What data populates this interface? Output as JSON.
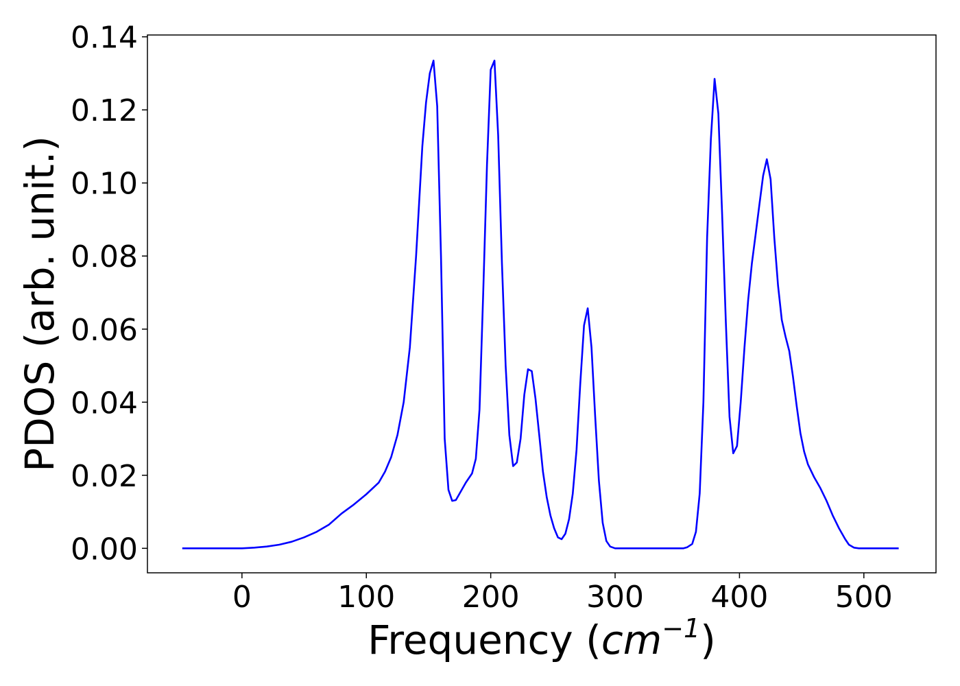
{
  "chart_data": {
    "type": "line",
    "title": "",
    "xlabel": "Frequency (",
    "xlabel_italic": "cm",
    "xlabel_sup": "−1",
    "xlabel_close": ")",
    "ylabel": "PDOS (arb. unit.)",
    "xlim": [
      -76,
      558
    ],
    "ylim": [
      -0.0067,
      0.1405
    ],
    "xticks": [
      0,
      100,
      200,
      300,
      400,
      500
    ],
    "xtick_labels": [
      "0",
      "100",
      "200",
      "300",
      "400",
      "500"
    ],
    "yticks": [
      0.0,
      0.02,
      0.04,
      0.06,
      0.08,
      0.1,
      0.12,
      0.14
    ],
    "ytick_labels": [
      "0.00",
      "0.02",
      "0.04",
      "0.06",
      "0.08",
      "0.10",
      "0.12",
      "0.14"
    ],
    "grid": false,
    "series": [
      {
        "color": "#0000ff",
        "points": [
          [
            -48,
            0.0
          ],
          [
            0,
            0.0
          ],
          [
            10,
            0.0002
          ],
          [
            20,
            0.0005
          ],
          [
            30,
            0.001
          ],
          [
            40,
            0.0018
          ],
          [
            50,
            0.003
          ],
          [
            60,
            0.0045
          ],
          [
            70,
            0.0065
          ],
          [
            80,
            0.0095
          ],
          [
            90,
            0.012
          ],
          [
            100,
            0.0148
          ],
          [
            110,
            0.018
          ],
          [
            115,
            0.021
          ],
          [
            120,
            0.025
          ],
          [
            125,
            0.031
          ],
          [
            130,
            0.04
          ],
          [
            135,
            0.055
          ],
          [
            140,
            0.08
          ],
          [
            145,
            0.11
          ],
          [
            148,
            0.122
          ],
          [
            151,
            0.13
          ],
          [
            154,
            0.1335
          ],
          [
            157,
            0.121
          ],
          [
            160,
            0.08
          ],
          [
            163,
            0.03
          ],
          [
            166,
            0.016
          ],
          [
            169,
            0.013
          ],
          [
            172,
            0.0132
          ],
          [
            175,
            0.015
          ],
          [
            180,
            0.018
          ],
          [
            185,
            0.0205
          ],
          [
            188,
            0.0245
          ],
          [
            191,
            0.038
          ],
          [
            194,
            0.07
          ],
          [
            197,
            0.105
          ],
          [
            200,
            0.131
          ],
          [
            203,
            0.1335
          ],
          [
            206,
            0.113
          ],
          [
            209,
            0.078
          ],
          [
            212,
            0.05
          ],
          [
            215,
            0.031
          ],
          [
            218,
            0.0225
          ],
          [
            221,
            0.0235
          ],
          [
            224,
            0.03
          ],
          [
            227,
            0.042
          ],
          [
            230,
            0.049
          ],
          [
            233,
            0.0485
          ],
          [
            236,
            0.041
          ],
          [
            239,
            0.031
          ],
          [
            242,
            0.021
          ],
          [
            245,
            0.014
          ],
          [
            248,
            0.009
          ],
          [
            251,
            0.0055
          ],
          [
            254,
            0.003
          ],
          [
            257,
            0.0025
          ],
          [
            260,
            0.004
          ],
          [
            263,
            0.008
          ],
          [
            266,
            0.015
          ],
          [
            269,
            0.027
          ],
          [
            272,
            0.045
          ],
          [
            275,
            0.061
          ],
          [
            278,
            0.0657
          ],
          [
            281,
            0.055
          ],
          [
            284,
            0.036
          ],
          [
            287,
            0.0185
          ],
          [
            290,
            0.007
          ],
          [
            293,
            0.002
          ],
          [
            296,
            0.0005
          ],
          [
            300,
            0.0
          ],
          [
            355,
            0.0
          ],
          [
            358,
            0.0003
          ],
          [
            362,
            0.0012
          ],
          [
            365,
            0.0045
          ],
          [
            368,
            0.015
          ],
          [
            371,
            0.04
          ],
          [
            374,
            0.085
          ],
          [
            377,
            0.112
          ],
          [
            380,
            0.1285
          ],
          [
            383,
            0.119
          ],
          [
            386,
            0.092
          ],
          [
            389,
            0.062
          ],
          [
            392,
            0.036
          ],
          [
            395,
            0.026
          ],
          [
            398,
            0.028
          ],
          [
            401,
            0.04
          ],
          [
            404,
            0.055
          ],
          [
            407,
            0.068
          ],
          [
            410,
            0.078
          ],
          [
            413,
            0.086
          ],
          [
            416,
            0.094
          ],
          [
            419,
            0.102
          ],
          [
            422,
            0.1065
          ],
          [
            425,
            0.101
          ],
          [
            428,
            0.085
          ],
          [
            431,
            0.072
          ],
          [
            434,
            0.0625
          ],
          [
            437,
            0.058
          ],
          [
            440,
            0.054
          ],
          [
            443,
            0.047
          ],
          [
            446,
            0.039
          ],
          [
            449,
            0.0315
          ],
          [
            452,
            0.0265
          ],
          [
            455,
            0.023
          ],
          [
            460,
            0.0195
          ],
          [
            465,
            0.0165
          ],
          [
            470,
            0.013
          ],
          [
            475,
            0.009
          ],
          [
            480,
            0.0055
          ],
          [
            485,
            0.0025
          ],
          [
            488,
            0.001
          ],
          [
            492,
            0.0002
          ],
          [
            496,
            0.0
          ],
          [
            528,
            0.0
          ]
        ]
      }
    ]
  }
}
